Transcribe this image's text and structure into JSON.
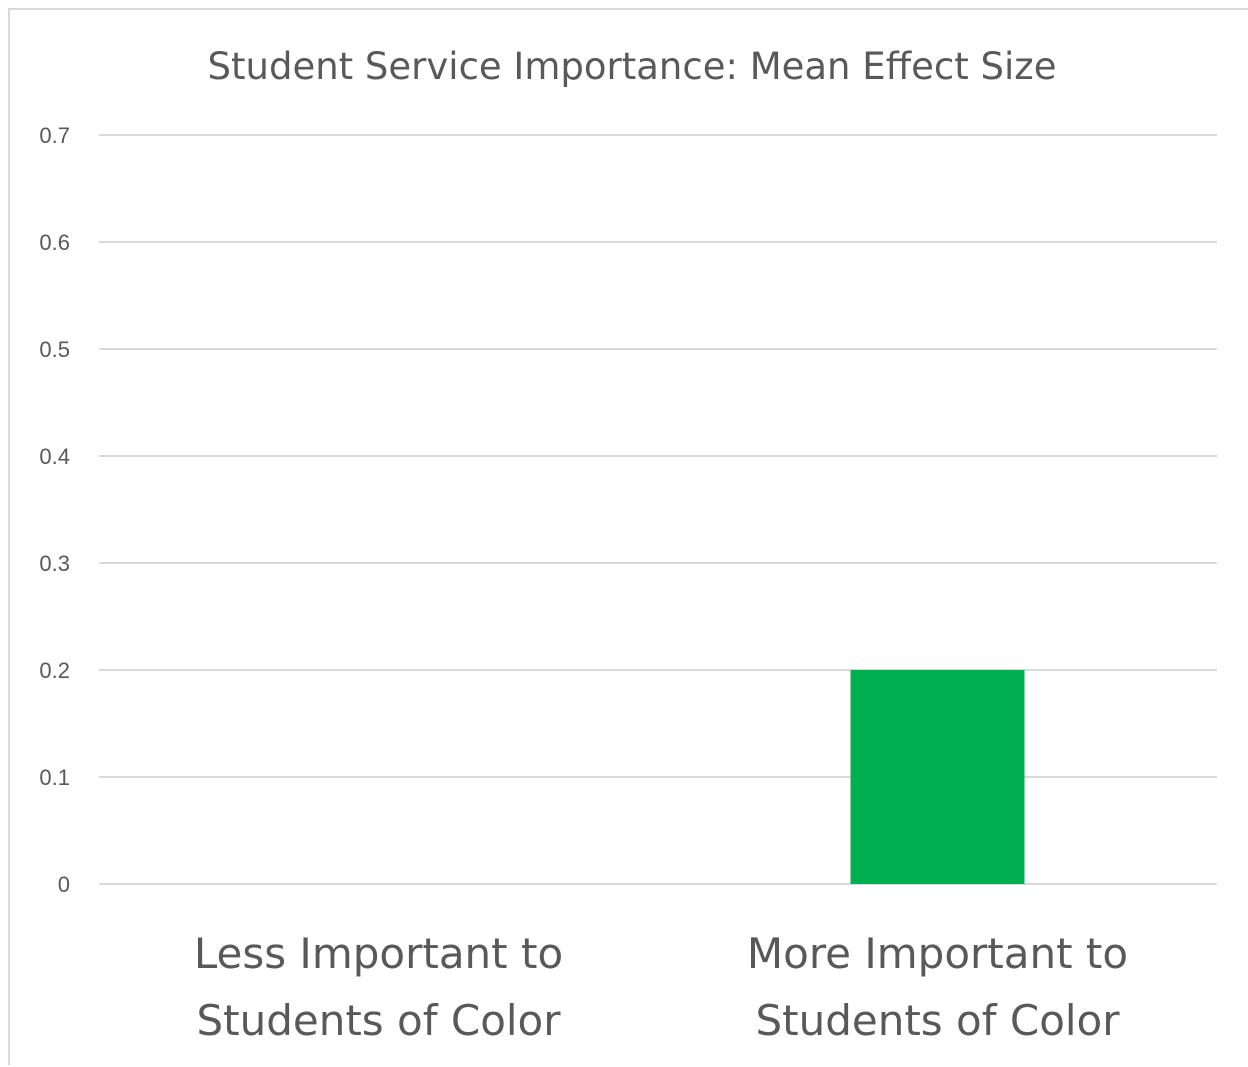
{
  "chart_data": {
    "type": "bar",
    "title": "Student Service Importance: Mean Effect Size",
    "categories": [
      [
        "Less Important to",
        "Students of Color"
      ],
      [
        "More Important to",
        "Students of Color"
      ]
    ],
    "values": [
      0,
      0.2
    ],
    "ylim": [
      0,
      0.7
    ],
    "yticks": [
      0,
      0.1,
      0.2,
      0.3,
      0.4,
      0.5,
      0.6,
      0.7
    ],
    "ytick_labels": [
      "0",
      "0.1",
      "0.2",
      "0.3",
      "0.4",
      "0.5",
      "0.6",
      "0.7"
    ],
    "grid": true,
    "legend": "none",
    "bar_color": "#00b050"
  }
}
